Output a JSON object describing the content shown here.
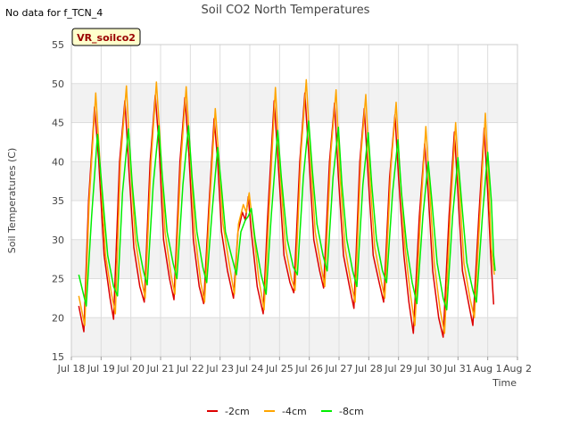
{
  "no_data_note": "No data for f_TCN_4",
  "chart_data": {
    "type": "line",
    "title": "Soil CO2 North Temperatures",
    "xlabel": "Time",
    "ylabel": "Soil Temperatures (C)",
    "station_label": "VR_soilco2",
    "ylim": [
      15,
      55
    ],
    "y_ticks": [
      15,
      20,
      25,
      30,
      35,
      40,
      45,
      50,
      55
    ],
    "xlim": [
      0,
      15
    ],
    "x_ticks": [
      {
        "v": 0,
        "label": "Jul 18"
      },
      {
        "v": 1,
        "label": "Jul 19"
      },
      {
        "v": 2,
        "label": "Jul 20"
      },
      {
        "v": 3,
        "label": "Jul 21"
      },
      {
        "v": 4,
        "label": "Jul 22"
      },
      {
        "v": 5,
        "label": "Jul 23"
      },
      {
        "v": 6,
        "label": "Jul 24"
      },
      {
        "v": 7,
        "label": "Jul 25"
      },
      {
        "v": 8,
        "label": "Jul 26"
      },
      {
        "v": 9,
        "label": "Jul 27"
      },
      {
        "v": 10,
        "label": "Jul 28"
      },
      {
        "v": 11,
        "label": "Jul 29"
      },
      {
        "v": 12,
        "label": "Jul 30"
      },
      {
        "v": 13,
        "label": "Jul 31"
      },
      {
        "v": 14,
        "label": "Aug 1"
      },
      {
        "v": 15,
        "label": "Aug 2"
      }
    ],
    "grid": true,
    "legend_position": "bottom-center",
    "series": [
      {
        "name": "-2cm",
        "color": "#dd0000",
        "points": [
          [
            0.25,
            21.5
          ],
          [
            0.42,
            18.2
          ],
          [
            0.58,
            35.0
          ],
          [
            0.78,
            47.0
          ],
          [
            0.92,
            40.0
          ],
          [
            1.1,
            28.0
          ],
          [
            1.3,
            22.5
          ],
          [
            1.42,
            19.8
          ],
          [
            1.62,
            40.0
          ],
          [
            1.8,
            47.8
          ],
          [
            1.95,
            38.0
          ],
          [
            2.1,
            29.0
          ],
          [
            2.3,
            24.0
          ],
          [
            2.45,
            22.0
          ],
          [
            2.65,
            40.0
          ],
          [
            2.82,
            48.5
          ],
          [
            2.95,
            42.0
          ],
          [
            3.1,
            30.0
          ],
          [
            3.3,
            25.0
          ],
          [
            3.45,
            22.3
          ],
          [
            3.65,
            40.0
          ],
          [
            3.82,
            48.2
          ],
          [
            3.95,
            41.0
          ],
          [
            4.1,
            30.0
          ],
          [
            4.3,
            24.0
          ],
          [
            4.45,
            21.8
          ],
          [
            4.62,
            34.0
          ],
          [
            4.8,
            45.5
          ],
          [
            4.92,
            40.0
          ],
          [
            5.05,
            31.0
          ],
          [
            5.25,
            26.0
          ],
          [
            5.45,
            22.5
          ],
          [
            5.6,
            31.0
          ],
          [
            5.75,
            33.5
          ],
          [
            5.85,
            32.5
          ],
          [
            5.95,
            35.5
          ],
          [
            6.05,
            31.0
          ],
          [
            6.25,
            24.0
          ],
          [
            6.45,
            20.5
          ],
          [
            6.6,
            33.0
          ],
          [
            6.82,
            47.8
          ],
          [
            6.95,
            40.0
          ],
          [
            7.15,
            28.0
          ],
          [
            7.35,
            24.5
          ],
          [
            7.48,
            23.2
          ],
          [
            7.68,
            40.0
          ],
          [
            7.85,
            48.8
          ],
          [
            7.98,
            41.0
          ],
          [
            8.15,
            30.0
          ],
          [
            8.35,
            26.0
          ],
          [
            8.48,
            23.8
          ],
          [
            8.68,
            40.0
          ],
          [
            8.85,
            47.5
          ],
          [
            8.98,
            38.0
          ],
          [
            9.15,
            28.0
          ],
          [
            9.35,
            24.0
          ],
          [
            9.5,
            21.2
          ],
          [
            9.7,
            40.0
          ],
          [
            9.85,
            46.8
          ],
          [
            9.98,
            38.0
          ],
          [
            10.15,
            28.0
          ],
          [
            10.35,
            24.5
          ],
          [
            10.5,
            22.0
          ],
          [
            10.7,
            38.0
          ],
          [
            10.88,
            46.0
          ],
          [
            11.0,
            38.0
          ],
          [
            11.18,
            28.0
          ],
          [
            11.35,
            22.0
          ],
          [
            11.5,
            18.0
          ],
          [
            11.7,
            33.0
          ],
          [
            11.88,
            42.3
          ],
          [
            12.0,
            36.0
          ],
          [
            12.15,
            26.0
          ],
          [
            12.35,
            20.0
          ],
          [
            12.5,
            17.5
          ],
          [
            12.7,
            33.0
          ],
          [
            12.88,
            43.8
          ],
          [
            13.0,
            36.0
          ],
          [
            13.15,
            26.0
          ],
          [
            13.35,
            22.0
          ],
          [
            13.5,
            19.0
          ],
          [
            13.7,
            33.0
          ],
          [
            13.88,
            44.3
          ],
          [
            14.0,
            36.0
          ],
          [
            14.1,
            28.0
          ],
          [
            14.2,
            21.7
          ]
        ]
      },
      {
        "name": "-4cm",
        "color": "#ffa500",
        "points": [
          [
            0.25,
            22.8
          ],
          [
            0.45,
            19.0
          ],
          [
            0.6,
            35.0
          ],
          [
            0.82,
            48.8
          ],
          [
            0.96,
            40.0
          ],
          [
            1.15,
            28.0
          ],
          [
            1.35,
            23.0
          ],
          [
            1.48,
            20.5
          ],
          [
            1.65,
            40.0
          ],
          [
            1.85,
            49.7
          ],
          [
            1.98,
            40.0
          ],
          [
            2.15,
            30.0
          ],
          [
            2.35,
            25.0
          ],
          [
            2.48,
            22.5
          ],
          [
            2.68,
            40.0
          ],
          [
            2.86,
            50.2
          ],
          [
            2.98,
            43.0
          ],
          [
            3.15,
            31.0
          ],
          [
            3.35,
            25.5
          ],
          [
            3.48,
            23.0
          ],
          [
            3.68,
            40.0
          ],
          [
            3.86,
            49.6
          ],
          [
            3.98,
            42.0
          ],
          [
            4.15,
            31.0
          ],
          [
            4.35,
            24.5
          ],
          [
            4.48,
            22.0
          ],
          [
            4.66,
            35.0
          ],
          [
            4.84,
            46.8
          ],
          [
            4.95,
            41.0
          ],
          [
            5.1,
            32.0
          ],
          [
            5.3,
            27.0
          ],
          [
            5.48,
            23.0
          ],
          [
            5.62,
            32.0
          ],
          [
            5.78,
            34.5
          ],
          [
            5.88,
            33.5
          ],
          [
            5.98,
            36.0
          ],
          [
            6.1,
            32.0
          ],
          [
            6.3,
            25.0
          ],
          [
            6.48,
            21.0
          ],
          [
            6.65,
            34.0
          ],
          [
            6.86,
            49.5
          ],
          [
            6.98,
            41.0
          ],
          [
            7.2,
            29.0
          ],
          [
            7.4,
            25.0
          ],
          [
            7.52,
            23.5
          ],
          [
            7.72,
            41.0
          ],
          [
            7.9,
            50.5
          ],
          [
            8.02,
            42.0
          ],
          [
            8.2,
            31.0
          ],
          [
            8.4,
            26.5
          ],
          [
            8.52,
            24.0
          ],
          [
            8.72,
            41.0
          ],
          [
            8.9,
            49.2
          ],
          [
            9.02,
            39.0
          ],
          [
            9.2,
            29.0
          ],
          [
            9.4,
            24.5
          ],
          [
            9.54,
            22.0
          ],
          [
            9.74,
            41.0
          ],
          [
            9.9,
            48.6
          ],
          [
            10.02,
            39.0
          ],
          [
            10.2,
            29.0
          ],
          [
            10.4,
            25.0
          ],
          [
            10.54,
            22.5
          ],
          [
            10.74,
            39.0
          ],
          [
            10.92,
            47.6
          ],
          [
            11.04,
            39.0
          ],
          [
            11.22,
            29.0
          ],
          [
            11.4,
            23.0
          ],
          [
            11.55,
            19.0
          ],
          [
            11.75,
            34.0
          ],
          [
            11.92,
            44.5
          ],
          [
            12.04,
            37.0
          ],
          [
            12.2,
            27.0
          ],
          [
            12.4,
            21.0
          ],
          [
            12.55,
            18.0
          ],
          [
            12.75,
            34.0
          ],
          [
            12.92,
            45.0
          ],
          [
            13.04,
            37.0
          ],
          [
            13.2,
            27.0
          ],
          [
            13.4,
            22.5
          ],
          [
            13.55,
            20.0
          ],
          [
            13.75,
            34.0
          ],
          [
            13.92,
            46.2
          ],
          [
            14.04,
            37.0
          ],
          [
            14.12,
            29.0
          ],
          [
            14.22,
            25.5
          ]
        ]
      },
      {
        "name": "-8cm",
        "color": "#00ee00",
        "points": [
          [
            0.25,
            25.5
          ],
          [
            0.5,
            21.5
          ],
          [
            0.68,
            33.0
          ],
          [
            0.88,
            43.5
          ],
          [
            1.02,
            37.0
          ],
          [
            1.22,
            28.0
          ],
          [
            1.42,
            24.0
          ],
          [
            1.55,
            22.8
          ],
          [
            1.72,
            36.0
          ],
          [
            1.92,
            44.2
          ],
          [
            2.05,
            37.0
          ],
          [
            2.22,
            30.0
          ],
          [
            2.42,
            26.0
          ],
          [
            2.55,
            24.2
          ],
          [
            2.75,
            37.0
          ],
          [
            2.94,
            44.6
          ],
          [
            3.06,
            38.0
          ],
          [
            3.22,
            31.0
          ],
          [
            3.42,
            27.0
          ],
          [
            3.55,
            25.0
          ],
          [
            3.75,
            37.0
          ],
          [
            3.94,
            44.6
          ],
          [
            4.06,
            38.0
          ],
          [
            4.22,
            31.0
          ],
          [
            4.42,
            26.5
          ],
          [
            4.55,
            24.5
          ],
          [
            4.72,
            33.0
          ],
          [
            4.92,
            41.8
          ],
          [
            5.04,
            37.0
          ],
          [
            5.18,
            31.0
          ],
          [
            5.38,
            28.0
          ],
          [
            5.55,
            25.5
          ],
          [
            5.7,
            31.0
          ],
          [
            5.85,
            32.5
          ],
          [
            5.95,
            33.0
          ],
          [
            6.05,
            34.0
          ],
          [
            6.18,
            30.0
          ],
          [
            6.38,
            25.5
          ],
          [
            6.55,
            23.0
          ],
          [
            6.72,
            33.0
          ],
          [
            6.94,
            44.0
          ],
          [
            7.06,
            38.0
          ],
          [
            7.26,
            30.0
          ],
          [
            7.46,
            26.5
          ],
          [
            7.6,
            25.5
          ],
          [
            7.8,
            38.0
          ],
          [
            7.98,
            45.2
          ],
          [
            8.1,
            39.0
          ],
          [
            8.26,
            32.0
          ],
          [
            8.46,
            28.0
          ],
          [
            8.6,
            26.0
          ],
          [
            8.8,
            38.0
          ],
          [
            8.98,
            44.4
          ],
          [
            9.1,
            37.0
          ],
          [
            9.26,
            30.0
          ],
          [
            9.46,
            26.0
          ],
          [
            9.6,
            24.0
          ],
          [
            9.8,
            37.0
          ],
          [
            9.98,
            43.7
          ],
          [
            10.1,
            37.0
          ],
          [
            10.26,
            30.0
          ],
          [
            10.46,
            26.0
          ],
          [
            10.6,
            24.5
          ],
          [
            10.8,
            36.0
          ],
          [
            10.98,
            42.8
          ],
          [
            11.1,
            36.0
          ],
          [
            11.28,
            29.0
          ],
          [
            11.46,
            24.5
          ],
          [
            11.62,
            21.8
          ],
          [
            11.82,
            33.0
          ],
          [
            12.0,
            40.0
          ],
          [
            12.12,
            35.0
          ],
          [
            12.3,
            27.0
          ],
          [
            12.5,
            22.5
          ],
          [
            12.62,
            21.0
          ],
          [
            12.82,
            33.0
          ],
          [
            13.0,
            40.5
          ],
          [
            13.12,
            35.0
          ],
          [
            13.3,
            27.0
          ],
          [
            13.5,
            23.5
          ],
          [
            13.62,
            22.0
          ],
          [
            13.82,
            33.0
          ],
          [
            14.0,
            41.2
          ],
          [
            14.12,
            35.0
          ],
          [
            14.2,
            28.0
          ],
          [
            14.25,
            26.0
          ]
        ]
      }
    ]
  }
}
